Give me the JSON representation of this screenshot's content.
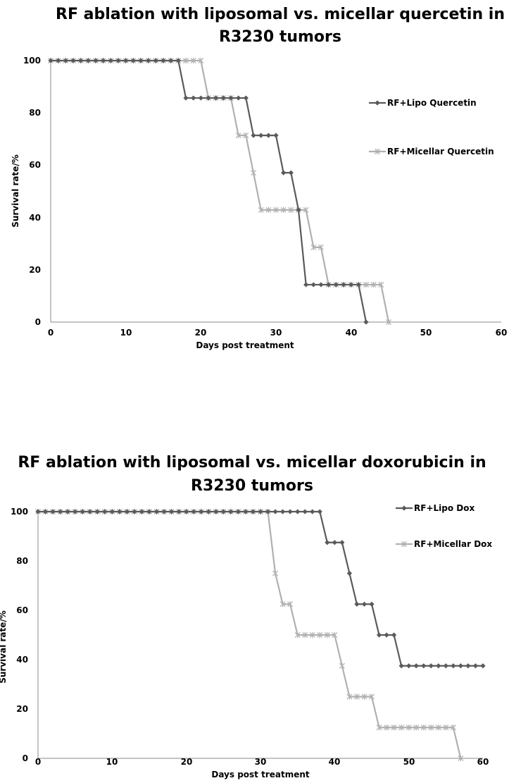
{
  "chart_data": [
    {
      "type": "line",
      "title_lines": [
        "RF ablation with liposomal vs. micellar quercetin in",
        "R3230 tumors"
      ],
      "xlabel": "Days post treatment",
      "ylabel": "Survival rate/%",
      "xlim": [
        0,
        60
      ],
      "ylim": [
        0,
        100
      ],
      "xticks": [
        "0",
        "10",
        "20",
        "30",
        "40",
        "50",
        "60"
      ],
      "yticks": [
        "0",
        "20",
        "40",
        "60",
        "80",
        "100"
      ],
      "grid": false,
      "legend_position": "right",
      "series": [
        {
          "name": "RF+Lipo Quercetin",
          "color": "#5a5a5a",
          "marker": "diamond",
          "x": [
            0,
            1,
            2,
            3,
            4,
            5,
            6,
            7,
            8,
            9,
            10,
            11,
            12,
            13,
            14,
            15,
            16,
            17,
            18,
            19,
            20,
            21,
            22,
            23,
            24,
            25,
            26,
            27,
            28,
            29,
            30,
            31,
            32,
            33,
            34,
            35,
            36,
            37,
            38,
            39,
            40,
            41,
            42
          ],
          "y": [
            100,
            100,
            100,
            100,
            100,
            100,
            100,
            100,
            100,
            100,
            100,
            100,
            100,
            100,
            100,
            100,
            100,
            100,
            85.7,
            85.7,
            85.7,
            85.7,
            85.7,
            85.7,
            85.7,
            85.7,
            85.7,
            71.4,
            71.4,
            71.4,
            71.4,
            57.1,
            57.1,
            42.9,
            14.3,
            14.3,
            14.3,
            14.3,
            14.3,
            14.3,
            14.3,
            14.3,
            0
          ]
        },
        {
          "name": "RF+Micellar Quercetin",
          "color": "#b0b0b0",
          "marker": "star",
          "x": [
            0,
            1,
            2,
            3,
            4,
            5,
            6,
            7,
            8,
            9,
            10,
            11,
            12,
            13,
            14,
            15,
            16,
            17,
            18,
            19,
            20,
            21,
            22,
            23,
            24,
            25,
            26,
            27,
            28,
            29,
            30,
            31,
            32,
            33,
            34,
            35,
            36,
            37,
            38,
            39,
            40,
            41,
            42,
            43,
            44,
            45
          ],
          "y": [
            100,
            100,
            100,
            100,
            100,
            100,
            100,
            100,
            100,
            100,
            100,
            100,
            100,
            100,
            100,
            100,
            100,
            100,
            100,
            100,
            100,
            85.7,
            85.7,
            85.7,
            85.7,
            71.4,
            71.4,
            57.1,
            42.9,
            42.9,
            42.9,
            42.9,
            42.9,
            42.9,
            42.9,
            28.6,
            28.6,
            14.3,
            14.3,
            14.3,
            14.3,
            14.3,
            14.3,
            14.3,
            14.3,
            0
          ]
        }
      ]
    },
    {
      "type": "line",
      "title_lines": [
        "RF ablation with liposomal vs. micellar doxorubicin in",
        "R3230 tumors"
      ],
      "xlabel": "Days post treatment",
      "ylabel": "Survival rate/%",
      "xlim": [
        0,
        60
      ],
      "ylim": [
        0,
        100
      ],
      "xticks": [
        "0",
        "10",
        "20",
        "30",
        "40",
        "50",
        "60"
      ],
      "yticks": [
        "0",
        "20",
        "40",
        "60",
        "80",
        "100"
      ],
      "grid": false,
      "legend_position": "right",
      "series": [
        {
          "name": "RF+Lipo Dox",
          "color": "#5a5a5a",
          "marker": "diamond",
          "x": [
            0,
            1,
            2,
            3,
            4,
            5,
            6,
            7,
            8,
            9,
            10,
            11,
            12,
            13,
            14,
            15,
            16,
            17,
            18,
            19,
            20,
            21,
            22,
            23,
            24,
            25,
            26,
            27,
            28,
            29,
            30,
            31,
            32,
            33,
            34,
            35,
            36,
            37,
            38,
            39,
            40,
            41,
            42,
            43,
            44,
            45,
            46,
            47,
            48,
            49,
            50,
            51,
            52,
            53,
            54,
            55,
            56,
            57,
            58,
            59,
            60
          ],
          "y": [
            100,
            100,
            100,
            100,
            100,
            100,
            100,
            100,
            100,
            100,
            100,
            100,
            100,
            100,
            100,
            100,
            100,
            100,
            100,
            100,
            100,
            100,
            100,
            100,
            100,
            100,
            100,
            100,
            100,
            100,
            100,
            100,
            100,
            100,
            100,
            100,
            100,
            100,
            100,
            87.5,
            87.5,
            87.5,
            75,
            62.5,
            62.5,
            62.5,
            50,
            50,
            50,
            37.5,
            37.5,
            37.5,
            37.5,
            37.5,
            37.5,
            37.5,
            37.5,
            37.5,
            37.5,
            37.5,
            37.5
          ]
        },
        {
          "name": "RF+Micellar Dox",
          "color": "#b0b0b0",
          "marker": "star",
          "x": [
            0,
            1,
            2,
            3,
            4,
            5,
            6,
            7,
            8,
            9,
            10,
            11,
            12,
            13,
            14,
            15,
            16,
            17,
            18,
            19,
            20,
            21,
            22,
            23,
            24,
            25,
            26,
            27,
            28,
            29,
            30,
            31,
            32,
            33,
            34,
            35,
            36,
            37,
            38,
            39,
            40,
            41,
            42,
            43,
            44,
            45,
            46,
            47,
            48,
            49,
            50,
            51,
            52,
            53,
            54,
            55,
            56,
            57
          ],
          "y": [
            100,
            100,
            100,
            100,
            100,
            100,
            100,
            100,
            100,
            100,
            100,
            100,
            100,
            100,
            100,
            100,
            100,
            100,
            100,
            100,
            100,
            100,
            100,
            100,
            100,
            100,
            100,
            100,
            100,
            100,
            100,
            100,
            75,
            62.5,
            62.5,
            50,
            50,
            50,
            50,
            50,
            50,
            37.5,
            25,
            25,
            25,
            25,
            12.5,
            12.5,
            12.5,
            12.5,
            12.5,
            12.5,
            12.5,
            12.5,
            12.5,
            12.5,
            12.5,
            0
          ]
        }
      ]
    }
  ]
}
